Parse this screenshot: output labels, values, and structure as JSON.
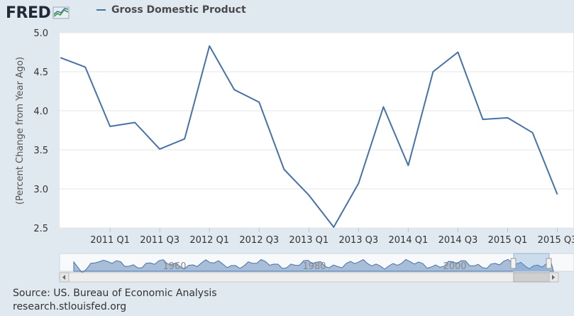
{
  "header": {
    "logo_text": "FRED",
    "legend_label": "Gross Domestic Product"
  },
  "chart_data": {
    "type": "line",
    "ylabel": "(Percent Change from Year Ago)",
    "ylim": [
      2.5,
      5.0
    ],
    "yticks": [
      "5.0",
      "4.5",
      "4.0",
      "3.5",
      "3.0",
      "2.5"
    ],
    "x": [
      "2010 Q3",
      "2010 Q4",
      "2011 Q1",
      "2011 Q2",
      "2011 Q3",
      "2011 Q4",
      "2012 Q1",
      "2012 Q2",
      "2012 Q3",
      "2012 Q4",
      "2013 Q1",
      "2013 Q2",
      "2013 Q3",
      "2013 Q4",
      "2014 Q1",
      "2014 Q2",
      "2014 Q3",
      "2014 Q4",
      "2015 Q1",
      "2015 Q2",
      "2015 Q3"
    ],
    "xticks": [
      "2011 Q1",
      "2011 Q3",
      "2012 Q1",
      "2012 Q3",
      "2013 Q1",
      "2013 Q3",
      "2014 Q1",
      "2014 Q3",
      "2015 Q1",
      "2015 Q3"
    ],
    "series": [
      {
        "name": "Gross Domestic Product",
        "color": "#4572a7",
        "values": [
          4.68,
          4.56,
          3.8,
          3.85,
          3.51,
          3.64,
          4.83,
          4.27,
          4.11,
          3.25,
          2.92,
          2.51,
          3.07,
          4.05,
          3.3,
          4.5,
          4.75,
          3.89,
          3.91,
          3.72,
          2.93
        ]
      }
    ],
    "grid": true,
    "navigator_labels": [
      "1960",
      "1980",
      "2000"
    ]
  },
  "footer": {
    "source_line": "Source: US. Bureau of Economic Analysis",
    "site_line": "research.stlouisfed.org"
  }
}
